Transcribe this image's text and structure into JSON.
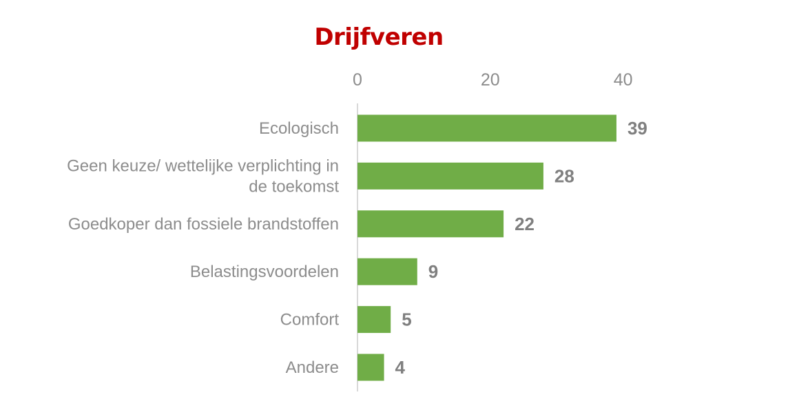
{
  "colors": {
    "title": "#c00000",
    "bar": "#70ad47",
    "axis": "#d9d9d9",
    "text": "#8c8c8c",
    "data_label": "#7f7f7f"
  },
  "chart_data": {
    "type": "bar",
    "orientation": "horizontal",
    "title": "Drijfveren",
    "categories": [
      [
        "Ecologisch"
      ],
      [
        "Geen keuze/ wettelijke verplichting in",
        "de toekomst"
      ],
      [
        "Goedkoper dan fossiele brandstoffen"
      ],
      [
        "Belastingsvoordelen"
      ],
      [
        "Comfort"
      ],
      [
        "Andere"
      ]
    ],
    "values": [
      39,
      28,
      22,
      9,
      5,
      4
    ],
    "xlim": [
      0,
      40
    ],
    "xticks": [
      0,
      20,
      40
    ],
    "x_axis_position": "top",
    "grid": false,
    "legend": "none",
    "data_labels": true
  }
}
